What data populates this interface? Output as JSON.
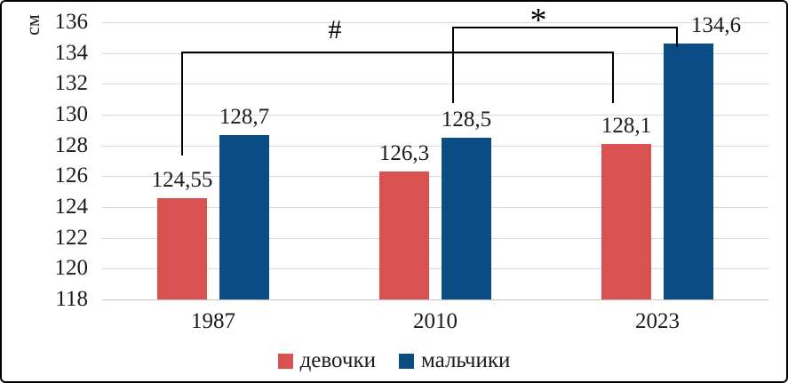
{
  "chart_data": {
    "type": "bar",
    "title": "",
    "ylabel": "см",
    "xlabel": "",
    "categories": [
      "1987",
      "2010",
      "2023"
    ],
    "series": [
      {
        "name": "девочки",
        "color": "#d95150",
        "values": [
          124.55,
          126.3,
          128.1
        ],
        "value_labels": [
          "124,55",
          "126,3",
          "128,1"
        ]
      },
      {
        "name": "мальчики",
        "color": "#0a4d84",
        "values": [
          128.7,
          128.5,
          134.6
        ],
        "value_labels": [
          "128,7",
          "128,5",
          "134,6"
        ]
      }
    ],
    "ylim": [
      118,
      136
    ],
    "yticks": [
      118,
      120,
      122,
      124,
      126,
      128,
      130,
      132,
      134,
      136
    ],
    "grid": true,
    "legend_position": "bottom",
    "decimal_separator": ",",
    "annotations": [
      {
        "symbol": "#",
        "connects": [
          "девочки 1987",
          "девочки 2023"
        ]
      },
      {
        "symbol": "*",
        "connects": [
          "мальчики 2010",
          "мальчики 2023"
        ]
      }
    ]
  }
}
